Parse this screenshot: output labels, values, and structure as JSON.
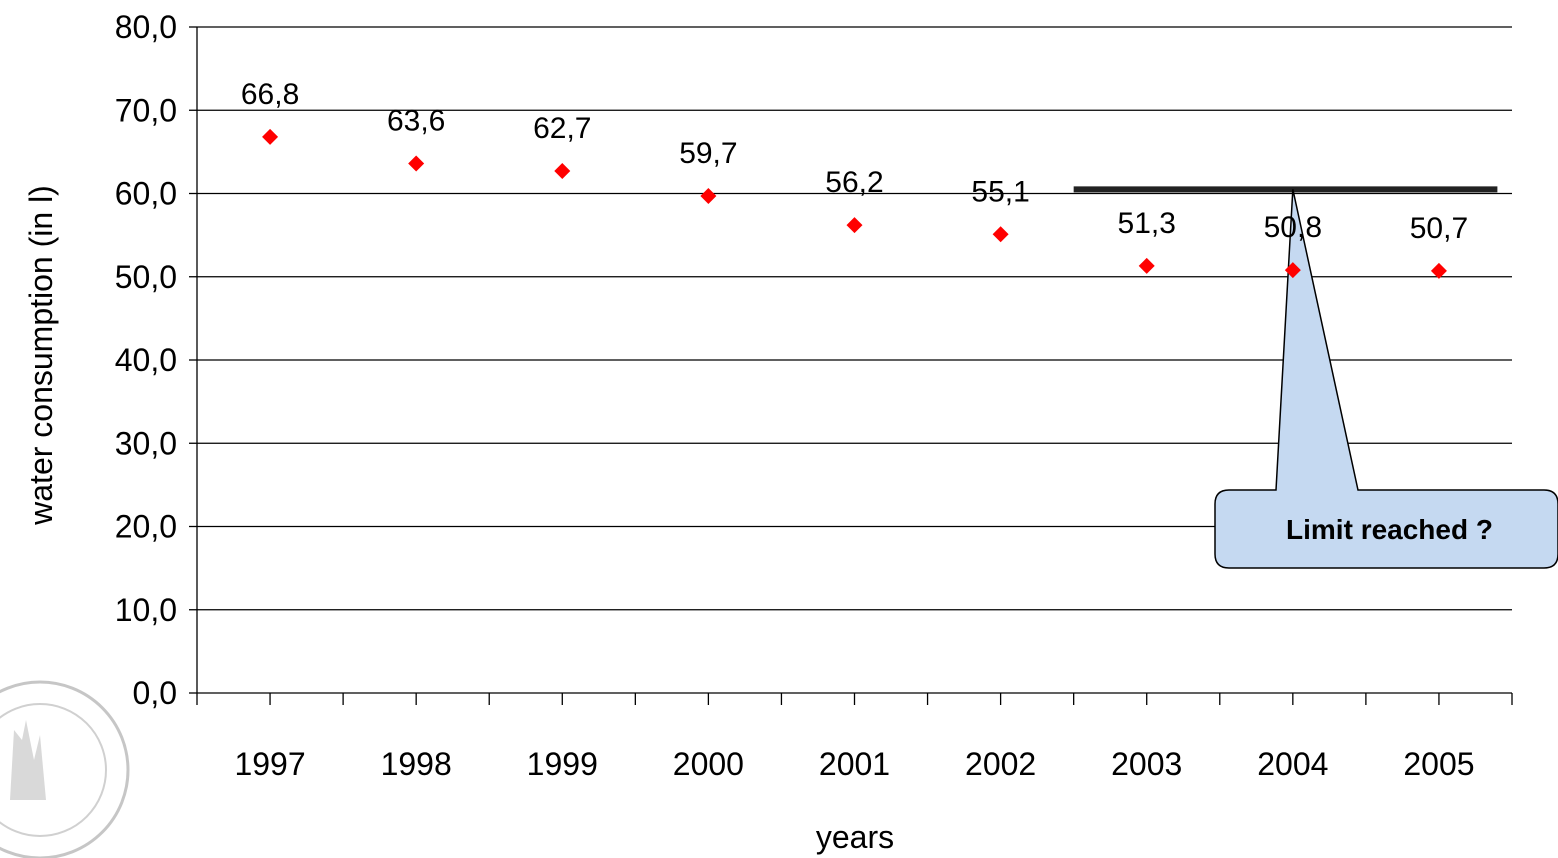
{
  "chart_data": {
    "type": "scatter",
    "title": "",
    "xlabel": "years",
    "ylabel": "water consumption (in l)",
    "categories": [
      "1997",
      "1998",
      "1999",
      "2000",
      "2001",
      "2002",
      "2003",
      "2004",
      "2005"
    ],
    "series": [
      {
        "values": [
          66.8,
          63.6,
          62.7,
          59.7,
          56.2,
          55.1,
          51.3,
          50.8,
          50.7
        ],
        "data_labels": [
          "66,8",
          "63,6",
          "62,7",
          "59,7",
          "56,2",
          "55,1",
          "51,3",
          "50,8",
          "50,7"
        ],
        "color": "#ff0000",
        "marker": "diamond"
      }
    ],
    "ylim": [
      0,
      80
    ],
    "yticks": [
      0,
      10,
      20,
      30,
      40,
      50,
      60,
      70,
      80
    ],
    "ytick_labels": [
      "0,0",
      "10,0",
      "20,0",
      "30,0",
      "40,0",
      "50,0",
      "60,0",
      "70,0",
      "80,0"
    ],
    "grid": true,
    "limit_line": {
      "value": 60.5,
      "x_from": 6.0,
      "x_to": 8.9
    },
    "annotation": {
      "text": "Limit reached ?",
      "fill": "#c5d9f1",
      "points_to_category_index": 7.5
    }
  },
  "decoration": {
    "seal": "university-seal"
  }
}
